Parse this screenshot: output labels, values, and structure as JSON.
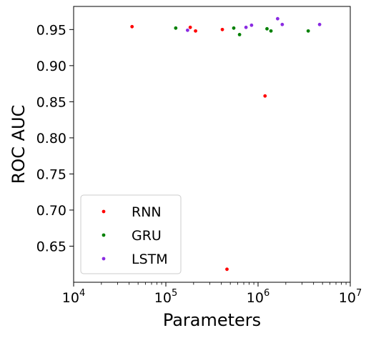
{
  "chart_data": {
    "type": "scatter",
    "xlabel": "Parameters",
    "ylabel": "ROC AUC",
    "x_scale": "log",
    "xlim": [
      10000,
      10000000
    ],
    "ylim": [
      0.6,
      0.982
    ],
    "x_ticks": [
      10000,
      100000,
      1000000,
      10000000
    ],
    "x_tick_labels": [
      {
        "base": "10",
        "exp": "4"
      },
      {
        "base": "10",
        "exp": "5"
      },
      {
        "base": "10",
        "exp": "6"
      },
      {
        "base": "10",
        "exp": "7"
      }
    ],
    "y_ticks": [
      0.65,
      0.7,
      0.75,
      0.8,
      0.85,
      0.9,
      0.95
    ],
    "y_tick_labels": [
      "0.65",
      "0.70",
      "0.75",
      "0.80",
      "0.85",
      "0.90",
      "0.95"
    ],
    "grid": false,
    "legend_position": "bottom-left",
    "series": [
      {
        "name": "RNN",
        "color": "#ff0000",
        "points": [
          {
            "x": 43000,
            "y": 0.954
          },
          {
            "x": 184000,
            "y": 0.953
          },
          {
            "x": 210000,
            "y": 0.948
          },
          {
            "x": 410000,
            "y": 0.95
          },
          {
            "x": 460000,
            "y": 0.618
          },
          {
            "x": 1190000,
            "y": 0.858
          }
        ]
      },
      {
        "name": "GRU",
        "color": "#008000",
        "points": [
          {
            "x": 128000,
            "y": 0.952
          },
          {
            "x": 545000,
            "y": 0.952
          },
          {
            "x": 630000,
            "y": 0.943
          },
          {
            "x": 1250000,
            "y": 0.951
          },
          {
            "x": 1380000,
            "y": 0.948
          },
          {
            "x": 3500000,
            "y": 0.948
          }
        ]
      },
      {
        "name": "LSTM",
        "color": "#8a2be2",
        "points": [
          {
            "x": 172000,
            "y": 0.949
          },
          {
            "x": 740000,
            "y": 0.953
          },
          {
            "x": 850000,
            "y": 0.956
          },
          {
            "x": 1630000,
            "y": 0.965
          },
          {
            "x": 1830000,
            "y": 0.957
          },
          {
            "x": 4650000,
            "y": 0.957
          }
        ]
      }
    ]
  }
}
